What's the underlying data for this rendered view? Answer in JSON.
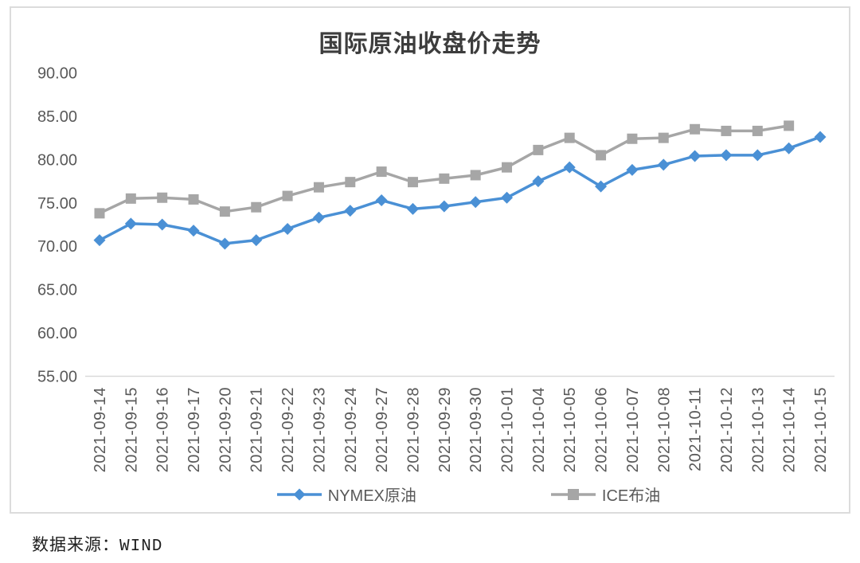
{
  "title": "国际原油收盘价走势",
  "source_note": "数据来源：WIND",
  "colors": {
    "nymex_blue": "#4A90D5",
    "ice_gray": "#A6A6A6",
    "axis_text": "#595959",
    "axis_line": "#d9d9d9",
    "border": "#dcdcdc",
    "title_text": "#3d3d3d"
  },
  "legend": [
    {
      "label": "NYMEX原油",
      "marker": "diamond",
      "color": "#4A90D5"
    },
    {
      "label": "ICE布油",
      "marker": "square",
      "color": "#A6A6A6"
    }
  ],
  "chart_data": {
    "type": "line",
    "title": "国际原油收盘价走势",
    "x": [
      "2021-09-14",
      "2021-09-15",
      "2021-09-16",
      "2021-09-17",
      "2021-09-20",
      "2021-09-21",
      "2021-09-22",
      "2021-09-23",
      "2021-09-24",
      "2021-09-27",
      "2021-09-28",
      "2021-09-29",
      "2021-09-30",
      "2021-10-01",
      "2021-10-04",
      "2021-10-05",
      "2021-10-06",
      "2021-10-07",
      "2021-10-08",
      "2021-10-11",
      "2021-10-12",
      "2021-10-13",
      "2021-10-14",
      "2021-10-15"
    ],
    "series": [
      {
        "name": "NYMEX原油",
        "marker": "diamond",
        "color": "#4A90D5",
        "values": [
          70.7,
          72.6,
          72.5,
          71.8,
          70.3,
          70.7,
          72.0,
          73.3,
          74.1,
          75.3,
          74.3,
          74.6,
          75.1,
          75.6,
          77.5,
          79.1,
          76.9,
          78.8,
          79.4,
          80.4,
          80.5,
          80.5,
          81.3,
          82.6
        ]
      },
      {
        "name": "ICE布油",
        "marker": "square",
        "color": "#A6A6A6",
        "values": [
          73.8,
          75.5,
          75.6,
          75.4,
          74.0,
          74.5,
          75.8,
          76.8,
          77.4,
          78.6,
          77.4,
          77.8,
          78.2,
          79.1,
          81.1,
          82.5,
          80.5,
          82.4,
          82.5,
          83.5,
          83.3,
          83.3,
          83.9,
          null
        ]
      }
    ],
    "ylim": [
      55,
      90
    ],
    "ytick_labels": [
      "90.00",
      "85.00",
      "80.00",
      "75.00",
      "70.00",
      "65.00",
      "60.00",
      "55.00"
    ],
    "grid": false,
    "legend_position": "bottom",
    "x_label_rotation": 90
  }
}
